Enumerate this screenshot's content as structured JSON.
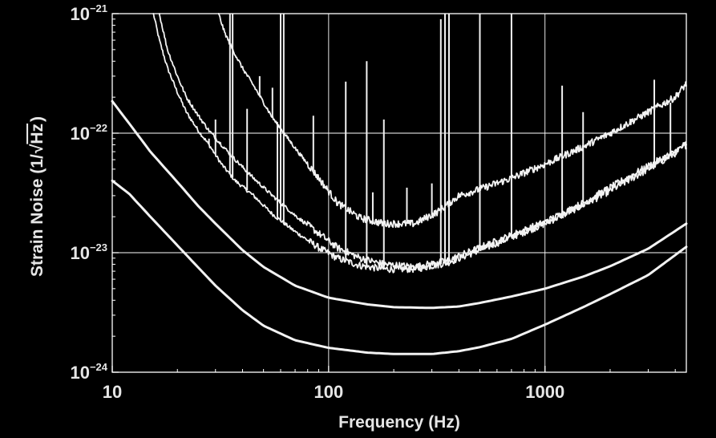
{
  "chart_data": {
    "type": "line",
    "title": "",
    "xlabel": "Frequency (Hz)",
    "ylabel": {
      "prefix": "Strain Noise (1/",
      "radicand": "Hz",
      "suffix": ")"
    },
    "x_scale": "log",
    "y_scale": "log",
    "xlim": [
      10,
      4500
    ],
    "ylim": [
      1e-24,
      1e-21
    ],
    "grid": true,
    "background": "#000000",
    "foreground": "#ffffff",
    "x_ticks": [
      {
        "value": 10,
        "label": "10"
      },
      {
        "value": 100,
        "label": "100"
      },
      {
        "value": 1000,
        "label": "1000"
      }
    ],
    "y_ticks": [
      {
        "value": 1e-24,
        "base": "10",
        "exp": "−24"
      },
      {
        "value": 1e-23,
        "base": "10",
        "exp": "−23"
      },
      {
        "value": 1e-22,
        "base": "10",
        "exp": "−22"
      },
      {
        "value": 1e-21,
        "base": "10",
        "exp": "−21"
      }
    ],
    "series": [
      {
        "style": "measured-noisy",
        "x": [
          15.5,
          16.5,
          18,
          20,
          22,
          25,
          28,
          32,
          37,
          45,
          55,
          70,
          90,
          110,
          140,
          180,
          250,
          350,
          500,
          700,
          1000,
          1500,
          2000,
          3000,
          4000,
          4500
        ],
        "y": [
          1e-21,
          6e-22,
          3.5e-22,
          2.2e-22,
          1.5e-22,
          1.05e-22,
          8e-23,
          5.5e-23,
          4e-23,
          3e-23,
          2.1e-23,
          1.5e-23,
          1.1e-23,
          9e-24,
          7.8e-24,
          7.3e-24,
          7.3e-24,
          8.2e-24,
          1.05e-23,
          1.35e-23,
          1.75e-23,
          2.5e-23,
          3.3e-23,
          5e-23,
          6.8e-23,
          8e-23
        ],
        "spikes": [
          {
            "x": 35,
            "top": 1e-21
          },
          {
            "x": 36,
            "top": 1e-21
          },
          {
            "x": 28,
            "top": 9e-23
          },
          {
            "x": 30,
            "top": 1.3e-22
          },
          {
            "x": 42,
            "top": 1.6e-22
          },
          {
            "x": 60,
            "top": 1e-21
          },
          {
            "x": 62,
            "top": 1e-21
          },
          {
            "x": 58,
            "top": 1.2e-22
          },
          {
            "x": 120,
            "top": 2.7e-22
          },
          {
            "x": 150,
            "top": 4e-22
          },
          {
            "x": 180,
            "top": 1.3e-22
          },
          {
            "x": 330,
            "top": 9e-22
          },
          {
            "x": 345,
            "top": 1e-21
          },
          {
            "x": 360,
            "top": 1e-21
          },
          {
            "x": 500,
            "top": 1e-21
          },
          {
            "x": 700,
            "top": 1e-21
          },
          {
            "x": 1200,
            "top": 2.5e-22
          },
          {
            "x": 1500,
            "top": 1.5e-22
          },
          {
            "x": 3200,
            "top": 2.8e-22
          },
          {
            "x": 3800,
            "top": 1.8e-22
          }
        ]
      },
      {
        "style": "measured-noisy",
        "x": [
          16.5,
          18,
          20,
          22,
          25,
          28,
          32,
          37,
          45,
          55,
          70,
          90,
          110,
          140,
          180,
          250,
          350,
          500,
          700,
          1000,
          1500,
          2000,
          3000,
          4000,
          4500
        ],
        "y": [
          1e-21,
          5e-22,
          3e-22,
          2e-22,
          1.4e-22,
          1.05e-22,
          8e-23,
          6e-23,
          4.2e-23,
          3e-23,
          2.05e-23,
          1.45e-23,
          1.1e-23,
          9e-24,
          8e-24,
          7.6e-24,
          8.5e-24,
          1.1e-23,
          1.4e-23,
          1.8e-23,
          2.6e-23,
          3.5e-23,
          5.3e-23,
          7e-23,
          8.2e-23
        ],
        "spikes": []
      },
      {
        "style": "measured-noisy",
        "x": [
          31,
          33,
          36,
          40,
          45,
          55,
          70,
          90,
          110,
          140,
          180,
          250,
          320,
          400,
          500,
          700,
          1000,
          1500,
          2000,
          3000,
          4000,
          4500
        ],
        "y": [
          1e-21,
          7e-22,
          5e-22,
          3.5e-22,
          2.5e-22,
          1.35e-22,
          7.5e-23,
          4.2e-23,
          2.6e-23,
          1.95e-23,
          1.75e-23,
          1.75e-23,
          2.2e-23,
          3e-23,
          3.4e-23,
          4.2e-23,
          5.5e-23,
          7.7e-23,
          1e-22,
          1.5e-22,
          2e-22,
          2.6e-22
        ],
        "spikes": [
          {
            "x": 48,
            "top": 3e-22
          },
          {
            "x": 55,
            "top": 2.4e-22
          },
          {
            "x": 85,
            "top": 1.4e-22
          },
          {
            "x": 160,
            "top": 3.2e-23
          },
          {
            "x": 230,
            "top": 3.5e-23
          },
          {
            "x": 300,
            "top": 3.8e-23
          }
        ]
      },
      {
        "style": "smooth",
        "x": [
          10,
          12,
          15,
          20,
          25,
          30,
          40,
          50,
          70,
          100,
          150,
          200,
          300,
          400,
          500,
          700,
          1000,
          1500,
          2000,
          3000,
          4500
        ],
        "y": [
          1.85e-22,
          1.2e-22,
          7e-23,
          3.9e-23,
          2.45e-23,
          1.75e-23,
          1.05e-23,
          7.6e-24,
          5.3e-24,
          4.2e-24,
          3.7e-24,
          3.5e-24,
          3.45e-24,
          3.55e-24,
          3.8e-24,
          4.3e-24,
          5e-24,
          6.3e-24,
          7.7e-24,
          1.08e-23,
          1.75e-23
        ]
      },
      {
        "style": "smooth",
        "x": [
          10,
          12,
          15,
          20,
          25,
          30,
          40,
          50,
          70,
          100,
          150,
          200,
          300,
          400,
          500,
          700,
          1000,
          1500,
          2000,
          3000,
          4500
        ],
        "y": [
          4e-23,
          3.1e-23,
          2e-23,
          1.15e-23,
          7.5e-24,
          5.3e-24,
          3.3e-24,
          2.45e-24,
          1.85e-24,
          1.6e-24,
          1.46e-24,
          1.42e-24,
          1.42e-24,
          1.5e-24,
          1.62e-24,
          1.9e-24,
          2.5e-24,
          3.5e-24,
          4.5e-24,
          6.5e-24,
          1.12e-23
        ]
      }
    ]
  }
}
